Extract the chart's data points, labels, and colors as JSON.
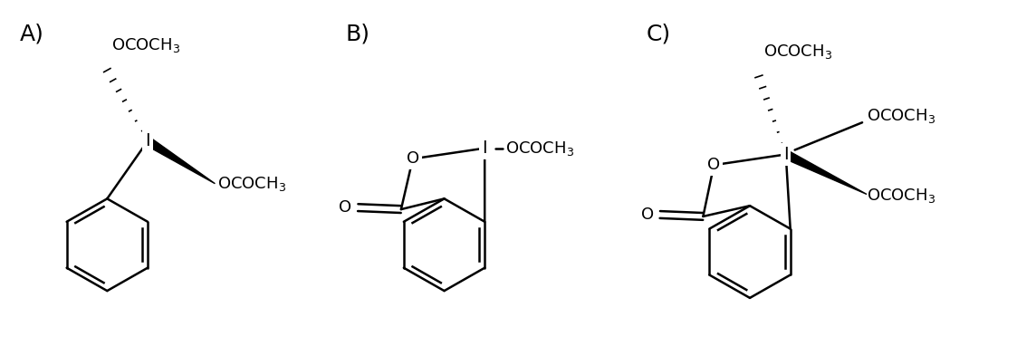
{
  "background_color": "#ffffff",
  "label_A": "A)",
  "label_B": "B)",
  "label_C": "C)",
  "label_fontsize": 18,
  "text_fontsize": 13,
  "lw": 1.8,
  "figsize": [
    11.23,
    3.82
  ],
  "dpi": 100
}
